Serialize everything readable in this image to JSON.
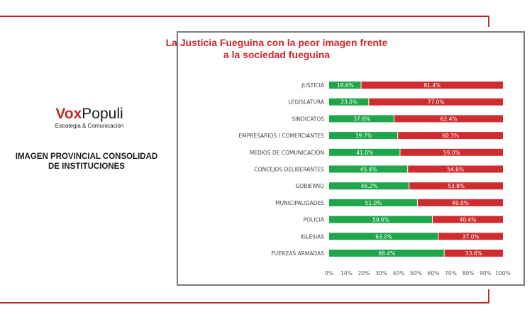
{
  "brand": {
    "name_part1": "Vox",
    "name_part2": "Populi",
    "tagline": "Estrategia & Comunicación"
  },
  "caption": {
    "line1": "IMAGEN PROVINCIAL CONSOLIDAD",
    "line2": "DE INSTITUCIONES"
  },
  "colors": {
    "accent": "#c0282d",
    "positive": "#1fa64b",
    "negative": "#d02c2f"
  },
  "chart_data": {
    "type": "bar",
    "orientation": "horizontal",
    "stacked": true,
    "title": "La Justicia Fueguina con la peor imagen frente a la sociedad fueguina",
    "title_lines": [
      "La Justicia Fueguina con la peor imagen frente",
      "a la sociedad fueguina"
    ],
    "categories": [
      "JUSTICIA",
      "LEGISLATURA",
      "SINDICATOS",
      "EMPRESARIOS / COMERCIANTES",
      "MEDIOS DE COMUNICACIÓN",
      "CONCEJOS DELIBERANTES",
      "GOBIERNO",
      "MUNICIPALIDADES",
      "POLICIA",
      "IGLESIAS",
      "FUERZAS ARMADAS"
    ],
    "series": [
      {
        "values": [
          18.6,
          23.0,
          37.6,
          39.7,
          41.0,
          45.4,
          46.2,
          51.0,
          59.6,
          63.0,
          66.4
        ],
        "labels": [
          "18.6%",
          "23.0%",
          "37.6%",
          "39.7%",
          "41.0%",
          "45.4%",
          "46.2%",
          "51.0%",
          "59.6%",
          "63.0%",
          "66.4%"
        ],
        "color": "#1fa64b"
      },
      {
        "values": [
          81.4,
          77.0,
          62.4,
          60.3,
          59.0,
          54.6,
          53.8,
          49.0,
          40.4,
          37.0,
          33.6
        ],
        "labels": [
          "81.4%",
          "77.0%",
          "62.4%",
          "60.3%",
          "59.0%",
          "54.6%",
          "53.8%",
          "49.0%",
          "40.4%",
          "37.0%",
          "33.6%"
        ],
        "color": "#d02c2f"
      }
    ],
    "x_ticks": [
      "0%",
      "10%",
      "20%",
      "30%",
      "40%",
      "50%",
      "60%",
      "70%",
      "80%",
      "90%",
      "100%"
    ],
    "xlim": [
      0,
      100
    ],
    "grid": false,
    "legend": "none"
  }
}
